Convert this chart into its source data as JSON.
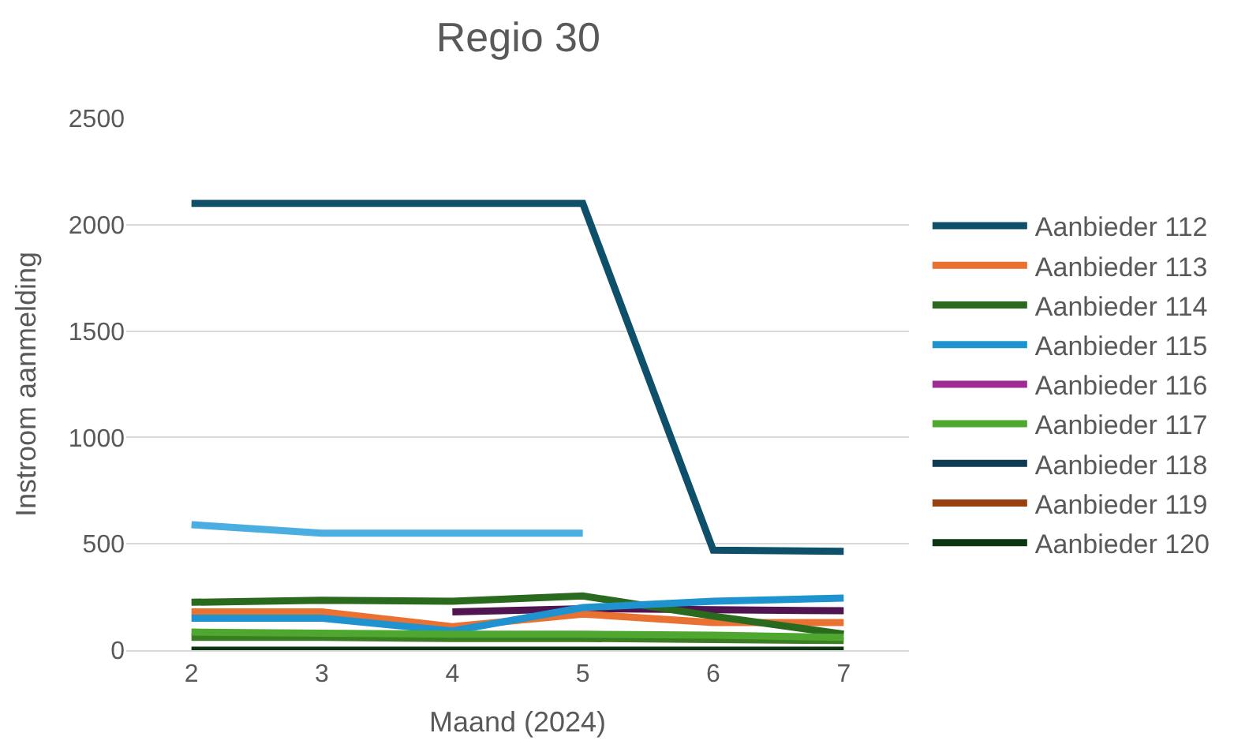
{
  "chart_data": {
    "type": "line",
    "title": "Regio 30",
    "xlabel": "Maand (2024)",
    "ylabel": "Instroom aanmelding",
    "x": [
      2,
      3,
      4,
      5,
      6,
      7
    ],
    "xlim": [
      1.5,
      7.5
    ],
    "xticks": [
      2,
      3,
      4,
      5,
      6,
      7
    ],
    "ylim": [
      0,
      2500
    ],
    "yticks": [
      0,
      500,
      1000,
      1500,
      2000,
      2500
    ],
    "grid": "y",
    "legend": "right",
    "marker": "none",
    "line_style": "solid",
    "series": [
      {
        "name": "Aanbieder 112",
        "color": "#0e4f6a",
        "values": [
          2100,
          2100,
          2100,
          2100,
          470,
          465
        ]
      },
      {
        "name": "Aanbieder 113",
        "color": "#e97132",
        "values": [
          180,
          180,
          110,
          170,
          130,
          130
        ]
      },
      {
        "name": "Aanbieder 114",
        "color": "#2a6a1f",
        "values": [
          225,
          235,
          230,
          255,
          160,
          75
        ]
      },
      {
        "name": "Aanbieder 115",
        "color": "#1e93cf",
        "values": [
          150,
          150,
          90,
          200,
          230,
          245
        ]
      },
      {
        "name": "Aanbieder 116",
        "color": "#a02b93",
        "values": [
          null,
          null,
          null,
          null,
          null,
          null
        ]
      },
      {
        "name": "Aanbieder 117",
        "color": "#4ea72e",
        "values": [
          85,
          80,
          75,
          75,
          70,
          60
        ]
      },
      {
        "name": "Aanbieder 118",
        "color": "#0e3a52",
        "values": [
          null,
          null,
          null,
          null,
          null,
          null
        ]
      },
      {
        "name": "Aanbieder 119",
        "color": "#9a3f10",
        "values": [
          null,
          null,
          null,
          null,
          null,
          null
        ]
      },
      {
        "name": "Aanbieder 120",
        "color": "#0d3512",
        "values": [
          0,
          0,
          0,
          0,
          0,
          0
        ]
      },
      {
        "color": "#4aafe0",
        "values": [
          590,
          550,
          550,
          550,
          null,
          null
        ]
      },
      {
        "color": "#501550",
        "values": [
          null,
          null,
          180,
          195,
          190,
          185
        ]
      },
      {
        "color": "#3b7d23",
        "values": [
          60,
          60,
          55,
          55,
          50,
          45
        ]
      }
    ]
  }
}
